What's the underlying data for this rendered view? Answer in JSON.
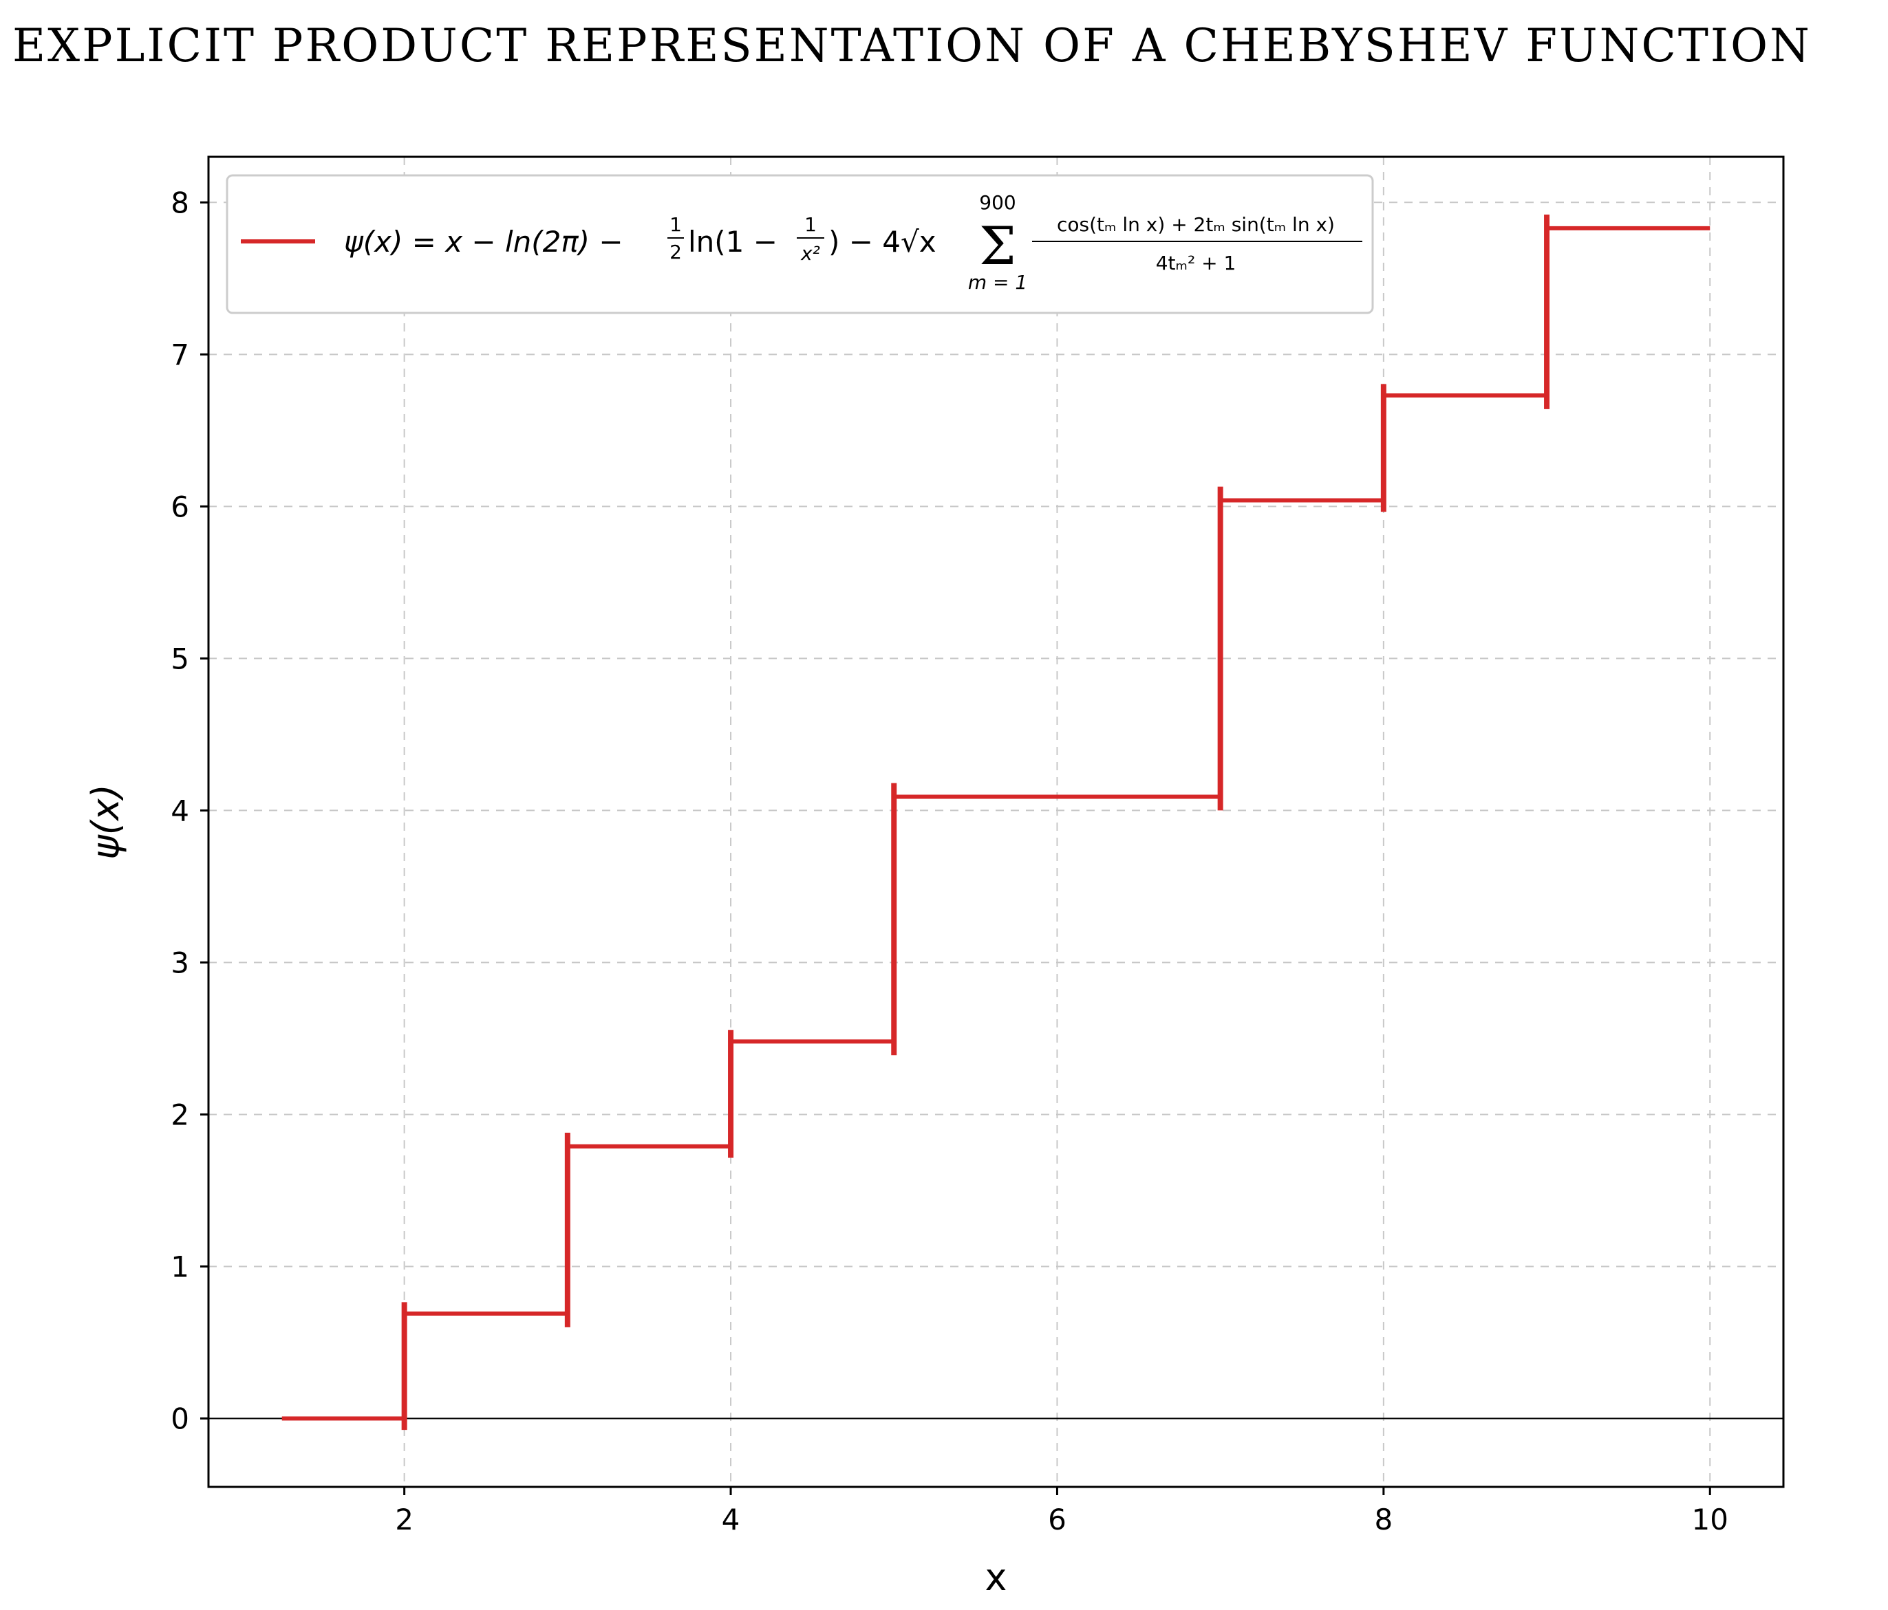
{
  "page": {
    "header": "EXPLICIT PRODUCT REPRESENTATION OF A CHEBYSHEV FUNCTION"
  },
  "colors": {
    "series": "#d62728",
    "grid": "#c8c8c8",
    "axis": "#000000",
    "legend_border": "#cccccc"
  },
  "legend": {
    "lhs": "ψ(x) = x − ln(2π) − ",
    "half_num": "1",
    "half_den": "2",
    "ln_open": "ln(1 − ",
    "inv_num": "1",
    "inv_den": "x²",
    "tail": ") − 4√x",
    "sigma": "Σ",
    "sum_upper": "900",
    "sum_lower": "m = 1",
    "frac_num": "cos(tₘ ln x) + 2tₘ sin(tₘ ln x)",
    "frac_den": "4tₘ² + 1"
  },
  "chart_data": {
    "type": "line",
    "title": "",
    "xlabel": "x",
    "ylabel": "ψ(x)",
    "xlim": [
      0.8,
      10.45
    ],
    "ylim": [
      -0.45,
      8.3
    ],
    "xticks": [
      2,
      4,
      6,
      8,
      10
    ],
    "yticks": [
      0,
      1,
      2,
      3,
      4,
      5,
      6,
      7,
      8
    ],
    "grid": true,
    "grid_style": "dashed",
    "legend_position": "top-left",
    "hline_y": 0,
    "series": [
      {
        "name": "ψ(x) = x − ln(2π) − ½ln(1 − 1/x²) − 4√x Σ_{m=1}^{900} (cos(tₘ ln x) + 2tₘ sin(tₘ ln x)) / (4tₘ² + 1)",
        "x_start": 1.25,
        "x_end": 10.0,
        "steps": [
          {
            "x": 2,
            "y_before": 0.0,
            "y_after": 0.69
          },
          {
            "x": 3,
            "y_before": 0.69,
            "y_after": 1.79
          },
          {
            "x": 4,
            "y_before": 1.79,
            "y_after": 2.48
          },
          {
            "x": 5,
            "y_before": 2.48,
            "y_after": 4.09
          },
          {
            "x": 7,
            "y_before": 4.09,
            "y_after": 6.04
          },
          {
            "x": 8,
            "y_before": 6.04,
            "y_after": 6.73
          },
          {
            "x": 9,
            "y_before": 6.73,
            "y_after": 7.83
          }
        ]
      }
    ]
  }
}
